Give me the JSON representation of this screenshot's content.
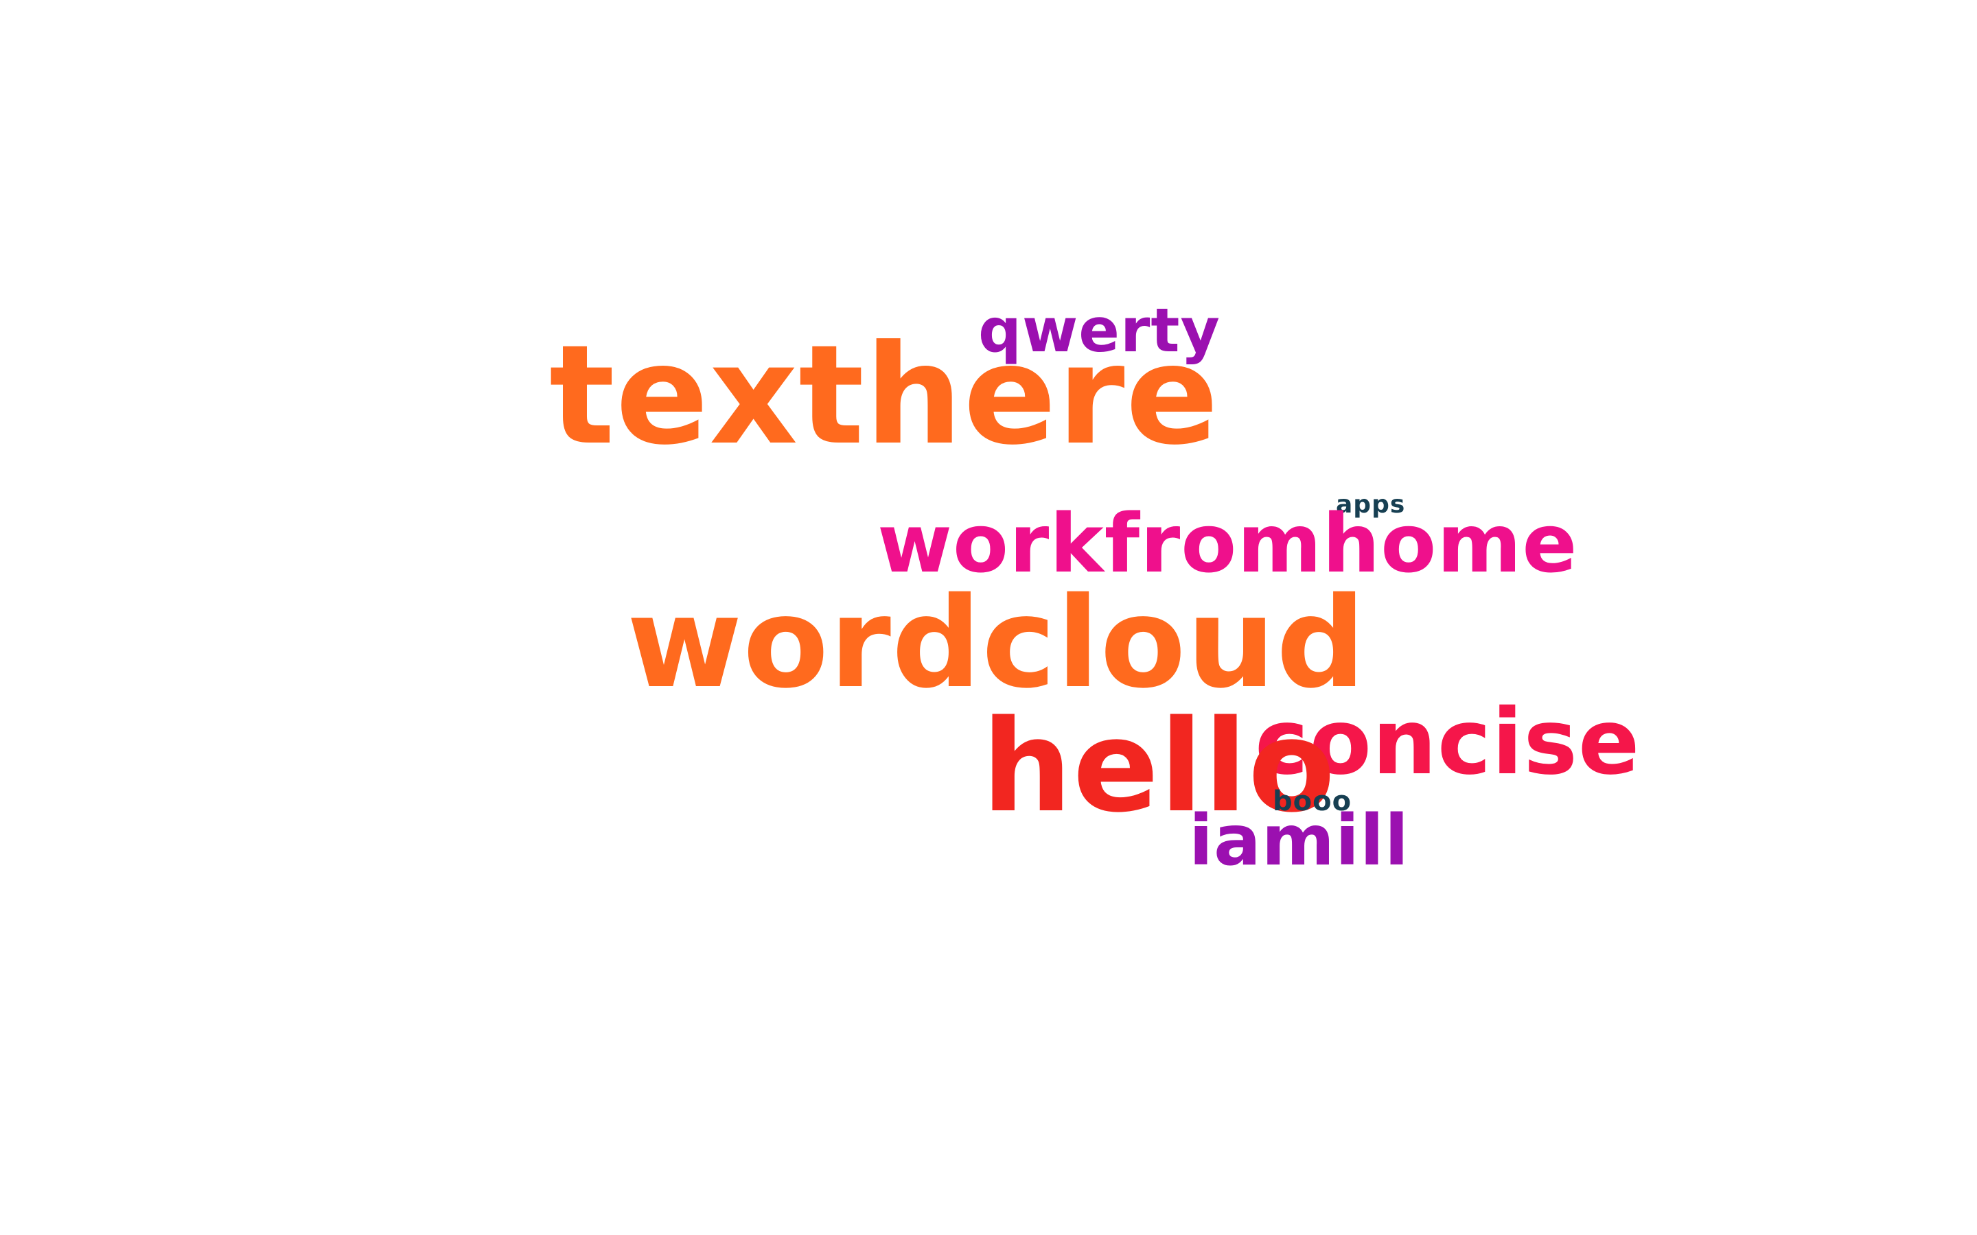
{
  "words": [
    {
      "text": "qwerty",
      "color": "#9b10b0"
    },
    {
      "text": "texthere",
      "color": "#ff6a1e"
    },
    {
      "text": "apps",
      "color": "#173f52"
    },
    {
      "text": "workfromhome",
      "color": "#ef108c"
    },
    {
      "text": "wordcloud",
      "color": "#ff6a1e"
    },
    {
      "text": "concise",
      "color": "#f5164a"
    },
    {
      "text": "hello",
      "color": "#f22620"
    },
    {
      "text": "booo",
      "color": "#173f52"
    },
    {
      "text": "iamill",
      "color": "#9b10b0"
    }
  ]
}
